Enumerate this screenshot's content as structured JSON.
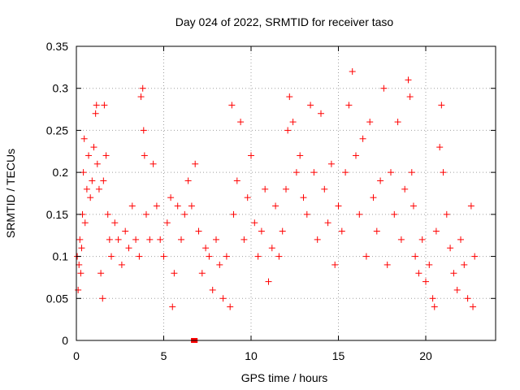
{
  "chart_data": {
    "type": "scatter",
    "title": "Day 024 of 2022, SRMTID for receiver taso",
    "xlabel": "GPS time / hours",
    "ylabel": "SRMTID / TECUs",
    "xlim": [
      0,
      24
    ],
    "ylim": [
      0,
      0.35
    ],
    "xticks": [
      0,
      5,
      10,
      15,
      20
    ],
    "yticks": [
      0,
      0.05,
      0.1,
      0.15,
      0.2,
      0.25,
      0.3,
      0.35
    ],
    "xtick_labels": [
      "0",
      "5",
      "10",
      "15",
      "20"
    ],
    "ytick_labels": [
      "0",
      "0.05",
      "0.1",
      "0.15",
      "0.2",
      "0.25",
      "0.3",
      "0.35"
    ],
    "grid": true,
    "marker": "plus",
    "color": "#ff0000",
    "series": [
      {
        "points": [
          [
            0.05,
            0.1
          ],
          [
            0.1,
            0.06
          ],
          [
            0.15,
            0.09
          ],
          [
            0.2,
            0.12
          ],
          [
            0.25,
            0.08
          ],
          [
            0.3,
            0.11
          ],
          [
            0.35,
            0.15
          ],
          [
            0.4,
            0.2
          ],
          [
            0.45,
            0.24
          ],
          [
            0.5,
            0.14
          ],
          [
            0.6,
            0.18
          ],
          [
            0.7,
            0.22
          ],
          [
            0.8,
            0.17
          ],
          [
            0.9,
            0.19
          ],
          [
            1.0,
            0.23
          ],
          [
            1.1,
            0.27
          ],
          [
            1.15,
            0.28
          ],
          [
            1.2,
            0.21
          ],
          [
            1.3,
            0.18
          ],
          [
            1.4,
            0.08
          ],
          [
            1.5,
            0.05
          ],
          [
            1.55,
            0.19
          ],
          [
            1.6,
            0.28
          ],
          [
            1.7,
            0.22
          ],
          [
            1.8,
            0.15
          ],
          [
            1.9,
            0.12
          ],
          [
            2.0,
            0.1
          ],
          [
            2.2,
            0.14
          ],
          [
            2.4,
            0.12
          ],
          [
            2.6,
            0.09
          ],
          [
            2.8,
            0.13
          ],
          [
            3.0,
            0.11
          ],
          [
            3.2,
            0.16
          ],
          [
            3.4,
            0.12
          ],
          [
            3.6,
            0.1
          ],
          [
            3.7,
            0.29
          ],
          [
            3.8,
            0.3
          ],
          [
            3.85,
            0.25
          ],
          [
            3.9,
            0.22
          ],
          [
            4.0,
            0.15
          ],
          [
            4.2,
            0.12
          ],
          [
            4.4,
            0.21
          ],
          [
            4.6,
            0.16
          ],
          [
            4.8,
            0.12
          ],
          [
            5.0,
            0.1
          ],
          [
            5.2,
            0.14
          ],
          [
            5.4,
            0.17
          ],
          [
            5.5,
            0.04
          ],
          [
            5.6,
            0.08
          ],
          [
            5.8,
            0.16
          ],
          [
            6.0,
            0.12
          ],
          [
            6.2,
            0.15
          ],
          [
            6.4,
            0.19
          ],
          [
            6.6,
            0.16
          ],
          [
            6.8,
            0.21
          ],
          [
            7.0,
            0.13
          ],
          [
            7.2,
            0.08
          ],
          [
            7.4,
            0.11
          ],
          [
            7.6,
            0.1
          ],
          [
            7.8,
            0.06
          ],
          [
            8.0,
            0.12
          ],
          [
            8.2,
            0.09
          ],
          [
            8.4,
            0.05
          ],
          [
            8.6,
            0.1
          ],
          [
            8.8,
            0.04
          ],
          [
            8.9,
            0.28
          ],
          [
            9.0,
            0.15
          ],
          [
            9.2,
            0.19
          ],
          [
            9.4,
            0.26
          ],
          [
            9.6,
            0.12
          ],
          [
            9.8,
            0.17
          ],
          [
            10.0,
            0.22
          ],
          [
            10.2,
            0.14
          ],
          [
            10.4,
            0.1
          ],
          [
            10.6,
            0.13
          ],
          [
            10.8,
            0.18
          ],
          [
            11.0,
            0.07
          ],
          [
            11.2,
            0.11
          ],
          [
            11.4,
            0.16
          ],
          [
            11.6,
            0.1
          ],
          [
            11.8,
            0.13
          ],
          [
            12.0,
            0.18
          ],
          [
            12.1,
            0.25
          ],
          [
            12.2,
            0.29
          ],
          [
            12.4,
            0.26
          ],
          [
            12.6,
            0.2
          ],
          [
            12.8,
            0.22
          ],
          [
            13.0,
            0.17
          ],
          [
            13.2,
            0.15
          ],
          [
            13.4,
            0.28
          ],
          [
            13.6,
            0.2
          ],
          [
            13.8,
            0.12
          ],
          [
            14.0,
            0.27
          ],
          [
            14.2,
            0.18
          ],
          [
            14.4,
            0.14
          ],
          [
            14.6,
            0.21
          ],
          [
            14.8,
            0.09
          ],
          [
            15.0,
            0.16
          ],
          [
            15.2,
            0.13
          ],
          [
            15.4,
            0.2
          ],
          [
            15.6,
            0.28
          ],
          [
            15.8,
            0.32
          ],
          [
            16.0,
            0.22
          ],
          [
            16.2,
            0.15
          ],
          [
            16.4,
            0.24
          ],
          [
            16.6,
            0.1
          ],
          [
            16.8,
            0.26
          ],
          [
            17.0,
            0.17
          ],
          [
            17.2,
            0.13
          ],
          [
            17.4,
            0.19
          ],
          [
            17.6,
            0.3
          ],
          [
            17.8,
            0.09
          ],
          [
            18.0,
            0.2
          ],
          [
            18.2,
            0.15
          ],
          [
            18.4,
            0.26
          ],
          [
            18.6,
            0.12
          ],
          [
            18.8,
            0.18
          ],
          [
            19.0,
            0.31
          ],
          [
            19.1,
            0.29
          ],
          [
            19.2,
            0.2
          ],
          [
            19.3,
            0.16
          ],
          [
            19.4,
            0.1
          ],
          [
            19.6,
            0.08
          ],
          [
            19.8,
            0.12
          ],
          [
            20.0,
            0.07
          ],
          [
            20.2,
            0.09
          ],
          [
            20.4,
            0.05
          ],
          [
            20.5,
            0.04
          ],
          [
            20.6,
            0.13
          ],
          [
            20.8,
            0.23
          ],
          [
            20.9,
            0.28
          ],
          [
            21.0,
            0.2
          ],
          [
            21.2,
            0.15
          ],
          [
            21.4,
            0.11
          ],
          [
            21.6,
            0.08
          ],
          [
            21.8,
            0.06
          ],
          [
            22.0,
            0.12
          ],
          [
            22.2,
            0.09
          ],
          [
            22.4,
            0.05
          ],
          [
            22.6,
            0.16
          ],
          [
            22.7,
            0.04
          ],
          [
            22.8,
            0.1
          ]
        ]
      }
    ],
    "highlight_points": [
      [
        6.7,
        0.0
      ],
      [
        6.8,
        0.0
      ]
    ]
  }
}
